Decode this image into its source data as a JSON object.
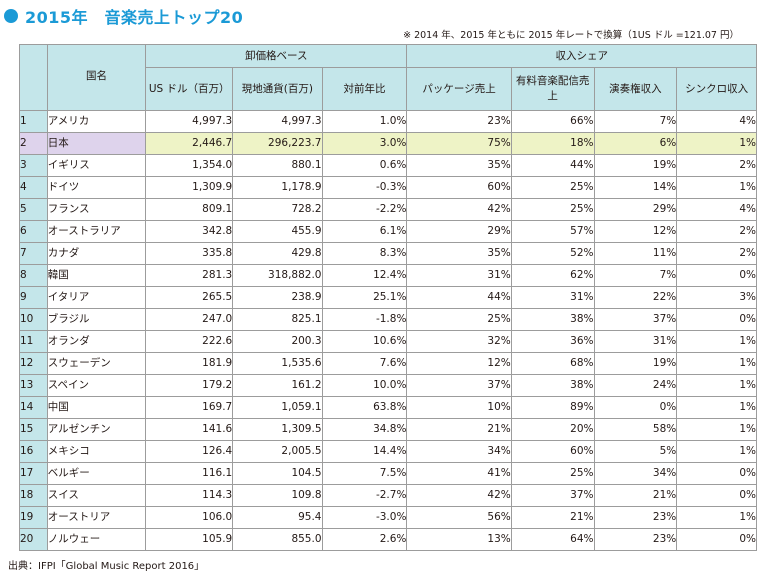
{
  "title": "2015年　音楽売上トップ20",
  "note": "※ 2014 年、2015 年ともに 2015 年レートで換算（1US ドル =121.07 円）",
  "source": "出典：IFPI「Global Music Report 2016」",
  "colors": {
    "accent": "#1b9ad6",
    "header_bg": "#c4e6ea",
    "highlight_name": "#ded3ec",
    "highlight_row": "#eef3c6"
  },
  "headers": {
    "country": "国名",
    "wholesale_group": "卸価格ベース",
    "share_group": "収入シェア",
    "usd": "US ドル（百万）",
    "local": "現地通貨(百万)",
    "yoy": "対前年比",
    "package": "パッケージ売上",
    "paid_stream": "有料音楽配信売上",
    "performance": "演奏権収入",
    "sync": "シンクロ収入"
  },
  "rows": [
    {
      "rank": "1",
      "country": "アメリカ",
      "usd": "4,997.3",
      "local": "4,997.3",
      "yoy": "1.0%",
      "package": "23%",
      "paid": "66%",
      "perf": "7%",
      "sync": "4%"
    },
    {
      "rank": "2",
      "country": "日本",
      "usd": "2,446.7",
      "local": "296,223.7",
      "yoy": "3.0%",
      "package": "75%",
      "paid": "18%",
      "perf": "6%",
      "sync": "1%"
    },
    {
      "rank": "3",
      "country": "イギリス",
      "usd": "1,354.0",
      "local": "880.1",
      "yoy": "0.6%",
      "package": "35%",
      "paid": "44%",
      "perf": "19%",
      "sync": "2%"
    },
    {
      "rank": "4",
      "country": "ドイツ",
      "usd": "1,309.9",
      "local": "1,178.9",
      "yoy": "-0.3%",
      "package": "60%",
      "paid": "25%",
      "perf": "14%",
      "sync": "1%"
    },
    {
      "rank": "5",
      "country": "フランス",
      "usd": "809.1",
      "local": "728.2",
      "yoy": "-2.2%",
      "package": "42%",
      "paid": "25%",
      "perf": "29%",
      "sync": "4%"
    },
    {
      "rank": "6",
      "country": "オーストラリア",
      "usd": "342.8",
      "local": "455.9",
      "yoy": "6.1%",
      "package": "29%",
      "paid": "57%",
      "perf": "12%",
      "sync": "2%"
    },
    {
      "rank": "7",
      "country": "カナダ",
      "usd": "335.8",
      "local": "429.8",
      "yoy": "8.3%",
      "package": "35%",
      "paid": "52%",
      "perf": "11%",
      "sync": "2%"
    },
    {
      "rank": "8",
      "country": "韓国",
      "usd": "281.3",
      "local": "318,882.0",
      "yoy": "12.4%",
      "package": "31%",
      "paid": "62%",
      "perf": "7%",
      "sync": "0%"
    },
    {
      "rank": "9",
      "country": "イタリア",
      "usd": "265.5",
      "local": "238.9",
      "yoy": "25.1%",
      "package": "44%",
      "paid": "31%",
      "perf": "22%",
      "sync": "3%"
    },
    {
      "rank": "10",
      "country": "ブラジル",
      "usd": "247.0",
      "local": "825.1",
      "yoy": "-1.8%",
      "package": "25%",
      "paid": "38%",
      "perf": "37%",
      "sync": "0%"
    },
    {
      "rank": "11",
      "country": "オランダ",
      "usd": "222.6",
      "local": "200.3",
      "yoy": "10.6%",
      "package": "32%",
      "paid": "36%",
      "perf": "31%",
      "sync": "1%"
    },
    {
      "rank": "12",
      "country": "スウェーデン",
      "usd": "181.9",
      "local": "1,535.6",
      "yoy": "7.6%",
      "package": "12%",
      "paid": "68%",
      "perf": "19%",
      "sync": "1%"
    },
    {
      "rank": "13",
      "country": "スペイン",
      "usd": "179.2",
      "local": "161.2",
      "yoy": "10.0%",
      "package": "37%",
      "paid": "38%",
      "perf": "24%",
      "sync": "1%"
    },
    {
      "rank": "14",
      "country": "中国",
      "usd": "169.7",
      "local": "1,059.1",
      "yoy": "63.8%",
      "package": "10%",
      "paid": "89%",
      "perf": "0%",
      "sync": "1%"
    },
    {
      "rank": "15",
      "country": "アルゼンチン",
      "usd": "141.6",
      "local": "1,309.5",
      "yoy": "34.8%",
      "package": "21%",
      "paid": "20%",
      "perf": "58%",
      "sync": "1%"
    },
    {
      "rank": "16",
      "country": "メキシコ",
      "usd": "126.4",
      "local": "2,005.5",
      "yoy": "14.4%",
      "package": "34%",
      "paid": "60%",
      "perf": "5%",
      "sync": "1%"
    },
    {
      "rank": "17",
      "country": "ベルギー",
      "usd": "116.1",
      "local": "104.5",
      "yoy": "7.5%",
      "package": "41%",
      "paid": "25%",
      "perf": "34%",
      "sync": "0%"
    },
    {
      "rank": "18",
      "country": "スイス",
      "usd": "114.3",
      "local": "109.8",
      "yoy": "-2.7%",
      "package": "42%",
      "paid": "37%",
      "perf": "21%",
      "sync": "0%"
    },
    {
      "rank": "19",
      "country": "オーストリア",
      "usd": "106.0",
      "local": "95.4",
      "yoy": "-3.0%",
      "package": "56%",
      "paid": "21%",
      "perf": "23%",
      "sync": "1%"
    },
    {
      "rank": "20",
      "country": "ノルウェー",
      "usd": "105.9",
      "local": "855.0",
      "yoy": "2.6%",
      "package": "13%",
      "paid": "64%",
      "perf": "23%",
      "sync": "0%"
    }
  ]
}
